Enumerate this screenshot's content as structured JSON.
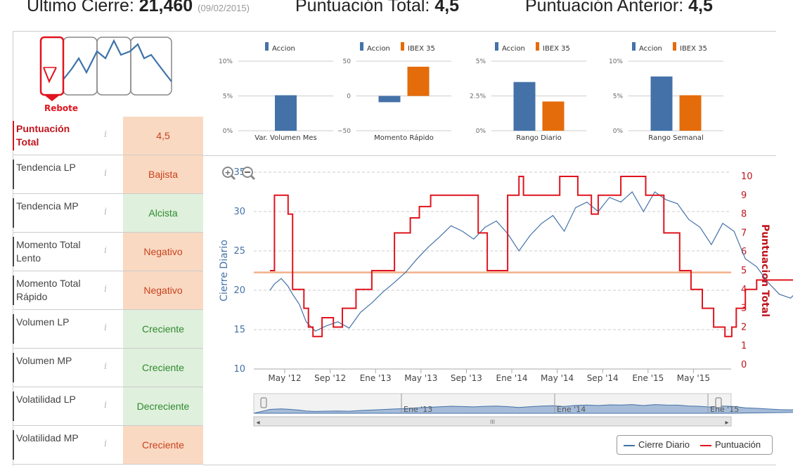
{
  "header": {
    "last_close_label": "Ultimo Cierre:",
    "last_close_value": "21,460",
    "last_close_date": "(09/02/2015)",
    "total_label": "Puntuación Total:",
    "total_value": "4,5",
    "prev_label": "Puntuación Anterior:",
    "prev_value": "4,5"
  },
  "signal": {
    "label": "Rebote"
  },
  "rows": [
    {
      "name": "Puntuación Total",
      "value": "4,5",
      "tone": "neg",
      "main": true
    },
    {
      "name": "Tendencia LP",
      "value": "Bajista",
      "tone": "neg"
    },
    {
      "name": "Tendencia MP",
      "value": "Alcista",
      "tone": "pos"
    },
    {
      "name": "Momento Total Lento",
      "value": "Negativo",
      "tone": "neg"
    },
    {
      "name": "Momento Total Rápido",
      "value": "Negativo",
      "tone": "neg"
    },
    {
      "name": "Volumen LP",
      "value": "Creciente",
      "tone": "pos"
    },
    {
      "name": "Volumen MP",
      "value": "Creciente",
      "tone": "pos"
    },
    {
      "name": "Volatilidad LP",
      "value": "Decreciente",
      "tone": "pos"
    },
    {
      "name": "Volatilidad MP",
      "value": "Creciente",
      "tone": "neg"
    }
  ],
  "info_glyph": "i",
  "colors": {
    "accion": "#4472a8",
    "ibex": "#e46c0a",
    "puntuacion": "#e0141e",
    "neg_bg": "#fad9c2",
    "pos_bg": "#dff0dc"
  },
  "chart_data": [
    {
      "type": "bar",
      "legend": [
        "Accion"
      ],
      "categories": [
        "Var. Volumen Mes"
      ],
      "series": [
        {
          "name": "Accion",
          "values": [
            5.1
          ]
        }
      ],
      "yticks": [
        "10%",
        "5%",
        "0%"
      ],
      "ylim": [
        0,
        10
      ]
    },
    {
      "type": "bar",
      "legend": [
        "Accion",
        "IBEX 35"
      ],
      "categories": [
        "Momento Rápido"
      ],
      "series": [
        {
          "name": "Accion",
          "values": [
            -9
          ]
        },
        {
          "name": "IBEX 35",
          "values": [
            42
          ]
        }
      ],
      "yticks": [
        "50",
        "0",
        "−50"
      ],
      "ylim": [
        -50,
        50
      ]
    },
    {
      "type": "bar",
      "legend": [
        "Accion",
        "IBEX 35"
      ],
      "categories": [
        "Rango Diario"
      ],
      "series": [
        {
          "name": "Accion",
          "values": [
            3.5
          ]
        },
        {
          "name": "IBEX 35",
          "values": [
            2.1
          ]
        }
      ],
      "yticks": [
        "5%",
        "2.5%",
        "0%"
      ],
      "ylim": [
        0,
        5
      ]
    },
    {
      "type": "bar",
      "legend": [
        "Accion",
        "IBEX 35"
      ],
      "categories": [
        "Rango Semanal"
      ],
      "series": [
        {
          "name": "Accion",
          "values": [
            7.8
          ]
        },
        {
          "name": "IBEX 35",
          "values": [
            5.1
          ]
        }
      ],
      "yticks": [
        "10%",
        "5%",
        "0%"
      ],
      "ylim": [
        0,
        10
      ]
    },
    {
      "type": "line",
      "ylabel": "Cierre Diario",
      "y2label": "Puntuacion Total",
      "ylim": [
        10,
        35
      ],
      "y2lim": [
        0,
        10
      ],
      "yticks": [
        "35",
        "30",
        "25",
        "20",
        "15",
        "10"
      ],
      "y2ticks": [
        "10",
        "9",
        "8",
        "7",
        "6",
        "5",
        "4",
        "3",
        "2",
        "1",
        "0"
      ],
      "xticks": [
        "May '12",
        "Sep '12",
        "Ene '13",
        "May '13",
        "Sep '13",
        "Ene '14",
        "May '14",
        "Sep '14",
        "Ene '15",
        "May '15"
      ],
      "reference_line_y2": 4.9,
      "series": [
        {
          "name": "Cierre Diario",
          "axis": "left",
          "x": [
            0.0,
            0.2,
            0.5,
            0.8,
            1.0,
            1.3,
            1.6,
            2.0,
            2.5,
            3.0,
            3.5,
            4.0,
            4.5,
            5.0,
            5.5,
            6.0,
            6.5,
            7.0,
            7.5,
            8.0,
            8.5,
            9.0,
            9.5,
            10.0,
            10.5,
            11.0,
            11.5,
            12.0,
            12.5,
            13.0,
            13.5,
            14.0,
            14.5,
            15.0,
            15.5,
            16.0,
            16.5,
            17.0,
            17.5,
            18.0,
            18.5,
            19.0,
            19.5,
            20.0,
            20.5,
            21.0,
            21.5,
            22.0,
            22.5,
            23.0,
            23.5,
            24.0,
            24.5,
            25.0,
            25.5,
            26.0,
            26.5,
            27.0,
            27.5,
            28.0,
            28.5,
            29.0,
            29.5,
            30.0,
            30.5,
            31.0,
            31.5,
            32.0,
            32.5,
            33.0,
            33.5,
            34.0
          ],
          "values": [
            20.0,
            20.8,
            21.5,
            20.5,
            19.5,
            18.2,
            16.0,
            14.8,
            15.5,
            16.0,
            15.2,
            17.2,
            18.4,
            19.8,
            21.0,
            22.3,
            24.0,
            25.5,
            26.8,
            28.2,
            27.5,
            26.5,
            28.0,
            28.8,
            27.2,
            25.0,
            27.0,
            28.5,
            29.5,
            27.5,
            30.5,
            31.2,
            30.0,
            31.8,
            31.2,
            32.5,
            30.0,
            32.5,
            31.5,
            31.0,
            29.0,
            28.0,
            25.8,
            28.5,
            27.5,
            24.0,
            23.0,
            21.0,
            19.5,
            19.0,
            20.5,
            21.6,
            21.5,
            22.0,
            21.8,
            21.5,
            21.4,
            21.3,
            21.4,
            21.46,
            21.46,
            21.46,
            21.46,
            21.46,
            21.46,
            21.46,
            21.46,
            21.46,
            21.46,
            21.46,
            21.46,
            21.46
          ]
        },
        {
          "name": "Puntuación",
          "axis": "right",
          "x": [
            0.0,
            0.2,
            0.8,
            1.0,
            1.5,
            1.7,
            1.9,
            2.3,
            2.8,
            3.2,
            3.8,
            4.5,
            5.5,
            6.2,
            6.6,
            7.1,
            7.4,
            7.6,
            8.0,
            9.0,
            9.2,
            9.6,
            10.5,
            11.0,
            11.2,
            11.8,
            12.5,
            12.8,
            13.6,
            14.2,
            14.5,
            15.5,
            16.6,
            17.4,
            18.1,
            18.6,
            19.1,
            19.6,
            20.1,
            20.4,
            20.6,
            21.0,
            21.5,
            22.0,
            22.6,
            22.9,
            23.4,
            24.0,
            24.4,
            24.8,
            25.0
          ],
          "values": [
            5,
            9,
            8,
            4,
            3,
            2,
            1.5,
            2.5,
            2,
            3,
            4,
            5,
            7,
            7.8,
            8.4,
            9,
            9,
            9,
            9,
            9,
            7,
            5,
            9,
            10,
            9,
            9,
            9,
            10,
            9,
            8,
            9,
            10,
            9,
            7,
            5,
            4,
            3,
            2,
            1.5,
            2,
            3,
            4,
            4.5,
            4.5,
            4.5,
            4.5,
            4.5,
            4.5,
            4.5,
            4.5,
            4.5
          ]
        }
      ]
    }
  ],
  "navigator": {
    "labels": [
      "Ene '13",
      "Ene '14",
      "Ene '15"
    ],
    "handle_glyph": "III",
    "left_arrow": "◂",
    "right_arrow": "▸"
  },
  "legend": {
    "series1": "Cierre Diario",
    "series2": "Puntuación"
  }
}
